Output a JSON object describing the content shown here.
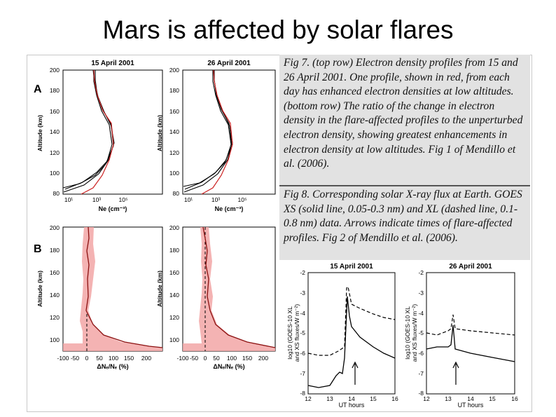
{
  "slide": {
    "title": "Mars is affected by solar flares"
  },
  "fig7": {
    "caption": "Fig 7. (top row) Electron density profiles from 15 and 26 April 2001. One profile, shown in red, from each day has enhanced electron densities at low altitudes. (bottom row) The ratio of the change in electron density in the flare-affected profiles to the unperturbed electron density, showing greatest enhancements in electron density at low altitudes. Fig 1 of Mendillo et al. (2006).",
    "row_a_label": "A",
    "row_b_label": "B",
    "panels": {
      "a_left_title": "15 April 2001",
      "a_right_title": "26 April 2001",
      "ylabel": "Altitude (km)",
      "xlabel_ne": "Ne (cm⁻³)",
      "xlabel_ratio": "ΔNₑ/Nₑ (%)"
    },
    "ticks": {
      "altitude": [
        "200",
        "180",
        "160",
        "140",
        "120",
        "100",
        "80"
      ],
      "altitude_b": [
        "200",
        "180",
        "160",
        "140",
        "120",
        "100"
      ],
      "ne_decades": [
        "10¹",
        "10³",
        "10⁵"
      ],
      "ratio": [
        "-100",
        "-50",
        "0",
        "50",
        "100",
        "150",
        "200"
      ]
    }
  },
  "fig8": {
    "caption": "Fig 8. Corresponding solar X-ray flux at Earth. GOES XS (solid line, 0.05-0.3 nm) and XL (dashed line, 0.1-0.8 nm) data. Arrows indicate times of flare-affected profiles. Fig 2 of Mendillo et al. (2006).",
    "left_title": "15 April 2001",
    "right_title": "26 April 2001",
    "ylabel_line1": "log10 (GOES-10 XL",
    "ylabel_line2": "and XS fluxes/W m⁻²)",
    "xlabel": "UT hours",
    "yticks": [
      "-2",
      "-3",
      "-4",
      "-5",
      "-6",
      "-7",
      "-8"
    ],
    "xticks_left": [
      "12",
      "13",
      "14",
      "15",
      "16"
    ],
    "xticks_right": [
      "12",
      "13",
      "14",
      "15",
      "16"
    ]
  },
  "chart_data": [
    {
      "type": "line",
      "title": "15 April 2001",
      "xlabel": "Ne (cm-3)",
      "ylabel": "Altitude (km)",
      "xscale": "log",
      "ylim": [
        80,
        200
      ],
      "series": [
        {
          "color": "#000000",
          "x": [
            4,
            30,
            200,
            500,
            900,
            900,
            400,
            200,
            130,
            100
          ],
          "y": [
            84,
            90,
            98,
            108,
            125,
            145,
            160,
            176,
            190,
            200
          ]
        },
        {
          "color": "#cc2222",
          "x": [
            60,
            200,
            400,
            700,
            900,
            800,
            350,
            180,
            120,
            90
          ],
          "y": [
            80,
            88,
            98,
            110,
            125,
            145,
            160,
            176,
            190,
            200
          ]
        }
      ]
    },
    {
      "type": "line",
      "title": "26 April 2001",
      "xlabel": "Ne (cm-3)",
      "ylabel": "Altitude (km)",
      "xscale": "log",
      "ylim": [
        80,
        200
      ],
      "series": [
        {
          "color": "#000000",
          "x": [
            4,
            30,
            200,
            500,
            850,
            850,
            420,
            210,
            130,
            100
          ],
          "y": [
            84,
            90,
            98,
            108,
            125,
            145,
            160,
            176,
            190,
            200
          ]
        },
        {
          "color": "#cc2222",
          "x": [
            70,
            230,
            450,
            700,
            900,
            850,
            380,
            190,
            120,
            90
          ],
          "y": [
            80,
            88,
            98,
            110,
            125,
            145,
            160,
            176,
            190,
            200
          ]
        }
      ]
    },
    {
      "type": "line",
      "title": "15 April 2001",
      "xlabel": "ΔNe/Ne (%)",
      "ylabel": "Altitude (km)",
      "xlim": [
        -100,
        200
      ],
      "ylim": [
        90,
        200
      ],
      "series": [
        {
          "color": "#cc2222",
          "x": [
            5,
            8,
            0,
            10,
            5,
            8,
            0,
            25,
            45,
            80,
            130,
            190
          ],
          "y": [
            200,
            185,
            170,
            155,
            140,
            128,
            122,
            112,
            105,
            100,
            96,
            92
          ]
        }
      ]
    },
    {
      "type": "line",
      "title": "26 April 2001",
      "xlabel": "ΔNe/Ne (%)",
      "ylabel": "Altitude (km)",
      "xlim": [
        -100,
        200
      ],
      "ylim": [
        90,
        200
      ],
      "series": [
        {
          "color": "#cc2222",
          "x": [
            -5,
            2,
            8,
            3,
            12,
            8,
            18,
            30,
            55,
            90,
            140,
            195
          ],
          "y": [
            200,
            185,
            170,
            155,
            140,
            128,
            122,
            112,
            105,
            100,
            96,
            92
          ]
        }
      ]
    },
    {
      "type": "line",
      "title": "15 April 2001",
      "xlabel": "UT hours",
      "ylabel": "log10 (GOES-10 XL and XS fluxes/W m-2)",
      "xlim": [
        12,
        16
      ],
      "ylim": [
        -8,
        -2
      ],
      "series": [
        {
          "name": "XL",
          "style": "dashed",
          "x": [
            12,
            12.5,
            13,
            13.4,
            13.7,
            13.85,
            14,
            14.4,
            15,
            15.5,
            16
          ],
          "y": [
            -6,
            -6.1,
            -6.1,
            -5.9,
            -5.7,
            -2.8,
            -3.6,
            -3.8,
            -4.1,
            -4.2,
            -4.3
          ]
        },
        {
          "name": "XS",
          "style": "solid",
          "x": [
            12,
            12.5,
            13,
            13.3,
            13.6,
            13.7,
            13.85,
            14,
            14.4,
            15,
            15.5,
            16
          ],
          "y": [
            -7.6,
            -7.7,
            -7.6,
            -7.1,
            -7.0,
            -6.3,
            -3.0,
            -4.5,
            -5.0,
            -5.5,
            -5.8,
            -6.0
          ]
        }
      ]
    },
    {
      "type": "line",
      "title": "26 April 2001",
      "xlabel": "UT hours",
      "ylabel": "log10 (GOES-10 XL and XS fluxes/W m-2)",
      "xlim": [
        12,
        16
      ],
      "ylim": [
        -8,
        -2
      ],
      "series": [
        {
          "name": "XL",
          "style": "dashed",
          "x": [
            12,
            12.5,
            13,
            13.1,
            13.2,
            13.3,
            14,
            15,
            16
          ],
          "y": [
            -5.1,
            -5.2,
            -5.0,
            -4.9,
            -4.2,
            -4.9,
            -5.0,
            -5.1,
            -5.2
          ]
        },
        {
          "name": "XS",
          "style": "solid",
          "x": [
            12,
            12.5,
            13,
            13.1,
            13.2,
            13.3,
            14,
            15,
            16
          ],
          "y": [
            -5.9,
            -5.8,
            -5.8,
            -5.7,
            -4.7,
            -5.9,
            -6.1,
            -6.3,
            -6.5
          ]
        }
      ]
    }
  ]
}
